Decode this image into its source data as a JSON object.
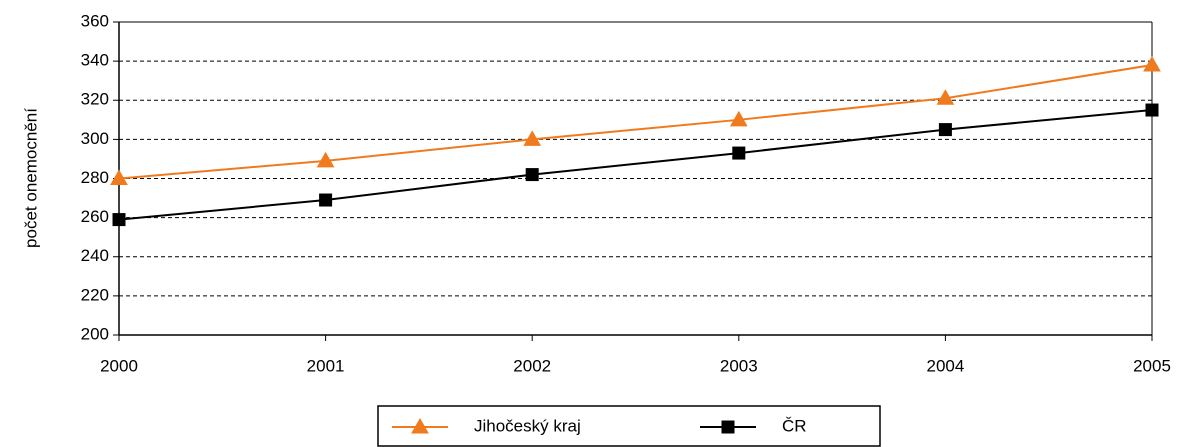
{
  "chart_data": {
    "type": "line",
    "ylabel": "počet onemocnění",
    "x": [
      2000,
      2001,
      2002,
      2003,
      2004,
      2005
    ],
    "xlim": [
      2000,
      2005
    ],
    "xticks": [
      2000,
      2001,
      2002,
      2003,
      2004,
      2005
    ],
    "ylim": [
      200,
      360
    ],
    "yticks": [
      200,
      220,
      240,
      260,
      280,
      300,
      320,
      340,
      360
    ],
    "grid": true,
    "legend": "bottom",
    "series": [
      {
        "name": "Jihočeský kraj",
        "color": "#f07a1e",
        "marker": "triangle",
        "values": [
          280,
          289,
          300,
          310,
          321,
          338
        ]
      },
      {
        "name": "ČR",
        "color": "#000000",
        "marker": "square",
        "values": [
          259,
          269,
          282,
          293,
          305,
          315
        ]
      }
    ]
  }
}
